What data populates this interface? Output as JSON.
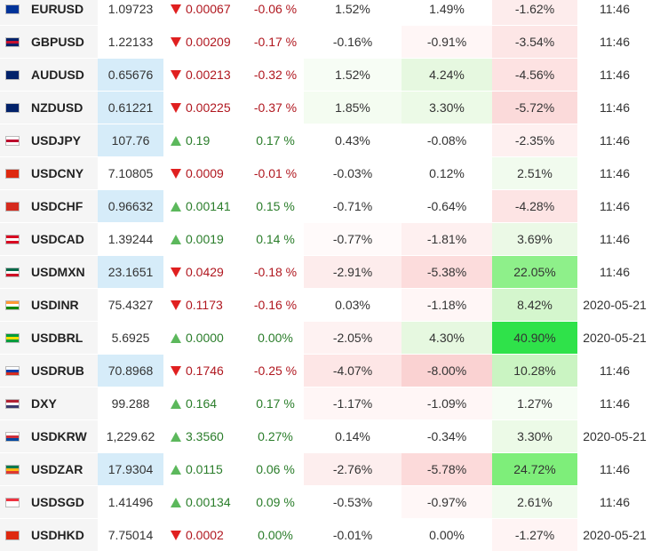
{
  "rows": [
    {
      "symbol": "EURUSD",
      "last": "1.09723",
      "change": "0.00067",
      "dir": "down",
      "pct": "-0.06 %",
      "p1": "1.52%",
      "p2": "1.49%",
      "p3": "-1.62%",
      "time": "11:46",
      "flag_icon": "eu-flag-icon",
      "flag_colors": [
        "#003399",
        "#003399",
        "#003399"
      ],
      "last_bg": "#ffffff",
      "p1_bg": "#ffffff",
      "p2_bg": "#ffffff",
      "p3_bg": "#fdecec"
    },
    {
      "symbol": "GBPUSD",
      "last": "1.22133",
      "change": "0.00209",
      "dir": "down",
      "pct": "-0.17 %",
      "p1": "-0.16%",
      "p2": "-0.91%",
      "p3": "-3.54%",
      "time": "11:46",
      "flag_icon": "uk-flag-icon",
      "flag_colors": [
        "#012169",
        "#c8102e",
        "#012169"
      ],
      "last_bg": "#ffffff",
      "p1_bg": "#ffffff",
      "p2_bg": "#fff6f6",
      "p3_bg": "#fde6e6"
    },
    {
      "symbol": "AUDUSD",
      "last": "0.65676",
      "change": "0.00213",
      "dir": "down",
      "pct": "-0.32 %",
      "p1": "1.52%",
      "p2": "4.24%",
      "p3": "-4.56%",
      "time": "11:46",
      "flag_icon": "australia-flag-icon",
      "flag_colors": [
        "#012169",
        "#012169",
        "#012169"
      ],
      "last_bg": "#d6ecf9",
      "p1_bg": "#f7fdf5",
      "p2_bg": "#e6f8e0",
      "p3_bg": "#fde2e2"
    },
    {
      "symbol": "NZDUSD",
      "last": "0.61221",
      "change": "0.00225",
      "dir": "down",
      "pct": "-0.37 %",
      "p1": "1.85%",
      "p2": "3.30%",
      "p3": "-5.72%",
      "time": "11:46",
      "flag_icon": "new-zealand-flag-icon",
      "flag_colors": [
        "#012169",
        "#012169",
        "#012169"
      ],
      "last_bg": "#d6ecf9",
      "p1_bg": "#f4fcf1",
      "p2_bg": "#ecfae7",
      "p3_bg": "#fbdada"
    },
    {
      "symbol": "USDJPY",
      "last": "107.76",
      "change": "0.19",
      "dir": "up",
      "pct": "0.17 %",
      "p1": "0.43%",
      "p2": "-0.08%",
      "p3": "-2.35%",
      "time": "11:46",
      "flag_icon": "japan-flag-icon",
      "flag_colors": [
        "#ffffff",
        "#bc002d",
        "#ffffff"
      ],
      "last_bg": "#d6ecf9",
      "p1_bg": "#ffffff",
      "p2_bg": "#ffffff",
      "p3_bg": "#fef0f0"
    },
    {
      "symbol": "USDCNY",
      "last": "7.10805",
      "change": "0.0009",
      "dir": "down",
      "pct": "-0.01 %",
      "p1": "-0.03%",
      "p2": "0.12%",
      "p3": "2.51%",
      "time": "11:46",
      "flag_icon": "china-flag-icon",
      "flag_colors": [
        "#de2910",
        "#de2910",
        "#de2910"
      ],
      "last_bg": "#ffffff",
      "p1_bg": "#ffffff",
      "p2_bg": "#ffffff",
      "p3_bg": "#f1fbee"
    },
    {
      "symbol": "USDCHF",
      "last": "0.96632",
      "change": "0.00141",
      "dir": "up",
      "pct": "0.15 %",
      "p1": "-0.71%",
      "p2": "-0.64%",
      "p3": "-4.28%",
      "time": "11:46",
      "flag_icon": "switzerland-flag-icon",
      "flag_colors": [
        "#d52b1e",
        "#d52b1e",
        "#d52b1e"
      ],
      "last_bg": "#d6ecf9",
      "p1_bg": "#ffffff",
      "p2_bg": "#ffffff",
      "p3_bg": "#fde4e4"
    },
    {
      "symbol": "USDCAD",
      "last": "1.39244",
      "change": "0.0019",
      "dir": "up",
      "pct": "0.14 %",
      "p1": "-0.77%",
      "p2": "-1.81%",
      "p3": "3.69%",
      "time": "11:46",
      "flag_icon": "canada-flag-icon",
      "flag_colors": [
        "#d80621",
        "#ffffff",
        "#d80621"
      ],
      "last_bg": "#ffffff",
      "p1_bg": "#fffafa",
      "p2_bg": "#fef0f0",
      "p3_bg": "#ebf9e6"
    },
    {
      "symbol": "USDMXN",
      "last": "23.1651",
      "change": "0.0429",
      "dir": "down",
      "pct": "-0.18 %",
      "p1": "-2.91%",
      "p2": "-5.38%",
      "p3": "22.05%",
      "time": "11:46",
      "flag_icon": "mexico-flag-icon",
      "flag_colors": [
        "#006847",
        "#ffffff",
        "#ce1126"
      ],
      "last_bg": "#d6ecf9",
      "p1_bg": "#fdecec",
      "p2_bg": "#fcdcdc",
      "p3_bg": "#8ef08a"
    },
    {
      "symbol": "USDINR",
      "last": "75.4327",
      "change": "0.1173",
      "dir": "down",
      "pct": "-0.16 %",
      "p1": "0.03%",
      "p2": "-1.18%",
      "p3": "8.42%",
      "time": "2020-05-21",
      "flag_icon": "india-flag-icon",
      "flag_colors": [
        "#ff9933",
        "#ffffff",
        "#138808"
      ],
      "last_bg": "#ffffff",
      "p1_bg": "#ffffff",
      "p2_bg": "#fff6f6",
      "p3_bg": "#d4f6cd"
    },
    {
      "symbol": "USDBRL",
      "last": "5.6925",
      "change": "0.0000",
      "dir": "up",
      "pct": "0.00%",
      "p1": "-2.05%",
      "p2": "4.30%",
      "p3": "40.90%",
      "time": "2020-05-21",
      "flag_icon": "brazil-flag-icon",
      "flag_colors": [
        "#009c3b",
        "#ffdf00",
        "#009c3b"
      ],
      "last_bg": "#ffffff",
      "p1_bg": "#fef2f2",
      "p2_bg": "#e6f8e0",
      "p3_bg": "#2fe24a"
    },
    {
      "symbol": "USDRUB",
      "last": "70.8968",
      "change": "0.1746",
      "dir": "down",
      "pct": "-0.25 %",
      "p1": "-4.07%",
      "p2": "-8.00%",
      "p3": "10.28%",
      "time": "11:46",
      "flag_icon": "russia-flag-icon",
      "flag_colors": [
        "#ffffff",
        "#0039a6",
        "#d52b1e"
      ],
      "last_bg": "#d6ecf9",
      "p1_bg": "#fde6e6",
      "p2_bg": "#fad2d2",
      "p3_bg": "#caf4c2"
    },
    {
      "symbol": "DXY",
      "last": "99.288",
      "change": "0.164",
      "dir": "up",
      "pct": "0.17 %",
      "p1": "-1.17%",
      "p2": "-1.09%",
      "p3": "1.27%",
      "time": "11:46",
      "flag_icon": "usa-flag-icon",
      "flag_colors": [
        "#b22234",
        "#ffffff",
        "#3c3b6e"
      ],
      "last_bg": "#ffffff",
      "p1_bg": "#fff6f6",
      "p2_bg": "#fff6f6",
      "p3_bg": "#f6fdf4"
    },
    {
      "symbol": "USDKRW",
      "last": "1,229.62",
      "change": "3.3560",
      "dir": "up",
      "pct": "0.27%",
      "p1": "0.14%",
      "p2": "-0.34%",
      "p3": "3.30%",
      "time": "2020-05-21",
      "flag_icon": "south-korea-flag-icon",
      "flag_colors": [
        "#ffffff",
        "#cd2e3a",
        "#0047a0"
      ],
      "last_bg": "#ffffff",
      "p1_bg": "#ffffff",
      "p2_bg": "#ffffff",
      "p3_bg": "#ecfae7"
    },
    {
      "symbol": "USDZAR",
      "last": "17.9304",
      "change": "0.0115",
      "dir": "up",
      "pct": "0.06 %",
      "p1": "-2.76%",
      "p2": "-5.78%",
      "p3": "24.72%",
      "time": "11:46",
      "flag_icon": "south-africa-flag-icon",
      "flag_colors": [
        "#007a4d",
        "#ffb612",
        "#de3831"
      ],
      "last_bg": "#d6ecf9",
      "p1_bg": "#fdeeee",
      "p2_bg": "#fcdada",
      "p3_bg": "#7eee7a"
    },
    {
      "symbol": "USDSGD",
      "last": "1.41496",
      "change": "0.00134",
      "dir": "up",
      "pct": "0.09 %",
      "p1": "-0.53%",
      "p2": "-0.97%",
      "p3": "2.61%",
      "time": "11:46",
      "flag_icon": "singapore-flag-icon",
      "flag_colors": [
        "#ef3340",
        "#ffffff",
        "#ffffff"
      ],
      "last_bg": "#ffffff",
      "p1_bg": "#ffffff",
      "p2_bg": "#fff7f7",
      "p3_bg": "#f1fbee"
    },
    {
      "symbol": "USDHKD",
      "last": "7.75014",
      "change": "0.0002",
      "dir": "down",
      "pct": "0.00%",
      "p1": "-0.01%",
      "p2": "0.00%",
      "p3": "-1.27%",
      "time": "2020-05-21",
      "flag_icon": "hong-kong-flag-icon",
      "flag_colors": [
        "#de2910",
        "#de2910",
        "#de2910"
      ],
      "last_bg": "#ffffff",
      "p1_bg": "#ffffff",
      "p2_bg": "#ffffff",
      "p3_bg": "#fff4f4"
    }
  ]
}
